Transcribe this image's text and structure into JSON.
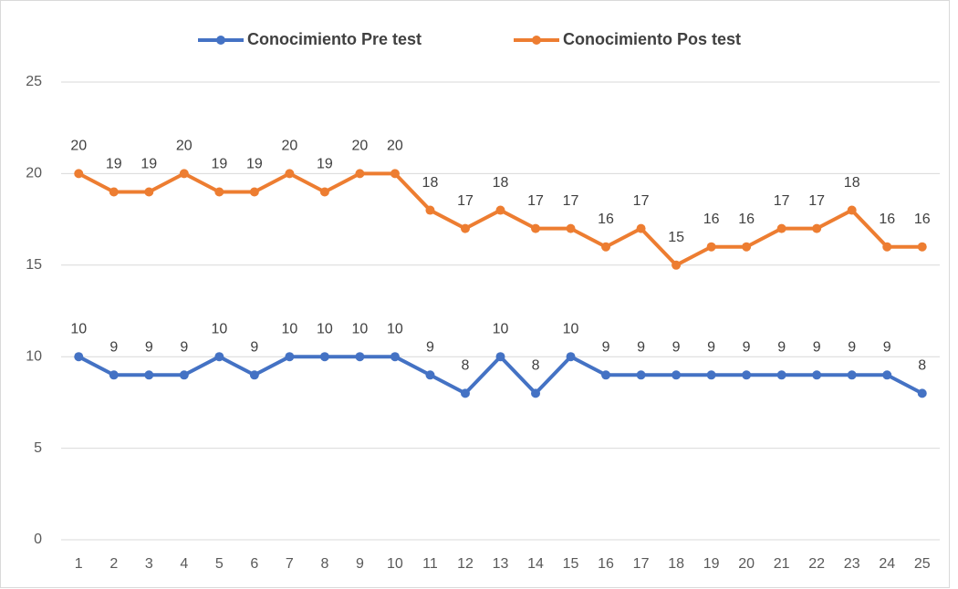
{
  "chart_data": {
    "type": "line",
    "categories": [
      "1",
      "2",
      "3",
      "4",
      "5",
      "6",
      "7",
      "8",
      "9",
      "10",
      "11",
      "12",
      "13",
      "14",
      "15",
      "16",
      "17",
      "18",
      "19",
      "20",
      "21",
      "22",
      "23",
      "24",
      "25"
    ],
    "series": [
      {
        "name": "Conocimiento Pre test",
        "color": "#4472c4",
        "values": [
          10,
          9,
          9,
          9,
          10,
          9,
          10,
          10,
          10,
          10,
          9,
          8,
          10,
          8,
          10,
          9,
          9,
          9,
          9,
          9,
          9,
          9,
          9,
          9,
          8
        ]
      },
      {
        "name": "Conocimiento Pos test",
        "color": "#ed7d31",
        "values": [
          20,
          19,
          19,
          20,
          19,
          19,
          20,
          19,
          20,
          20,
          18,
          17,
          18,
          17,
          17,
          16,
          17,
          15,
          16,
          16,
          17,
          17,
          18,
          16,
          16
        ]
      }
    ],
    "ylim": [
      0,
      25
    ],
    "yticks": [
      0,
      5,
      10,
      15,
      20,
      25
    ],
    "grid": true,
    "legend": "top",
    "data_labels": true
  }
}
